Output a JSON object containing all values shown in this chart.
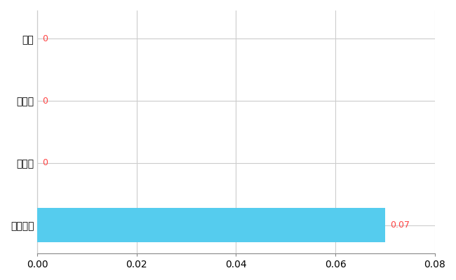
{
  "categories": [
    "全国平均",
    "県最大",
    "県平均",
    "津市"
  ],
  "values": [
    0.07,
    0,
    0,
    0
  ],
  "bar_color": "#55CCEE",
  "xlim": [
    0,
    0.08
  ],
  "xticks": [
    0,
    0.02,
    0.04,
    0.06,
    0.08
  ],
  "grid_color": "#CCCCCC",
  "background_color": "#FFFFFF",
  "value_labels": [
    "0.07",
    "0",
    "0",
    "0"
  ],
  "value_label_color_nonzero": "#FF4444",
  "value_label_color_zero": "#FF4444",
  "bar_height": 0.55,
  "tick_fontsize": 10,
  "label_fontsize": 10
}
